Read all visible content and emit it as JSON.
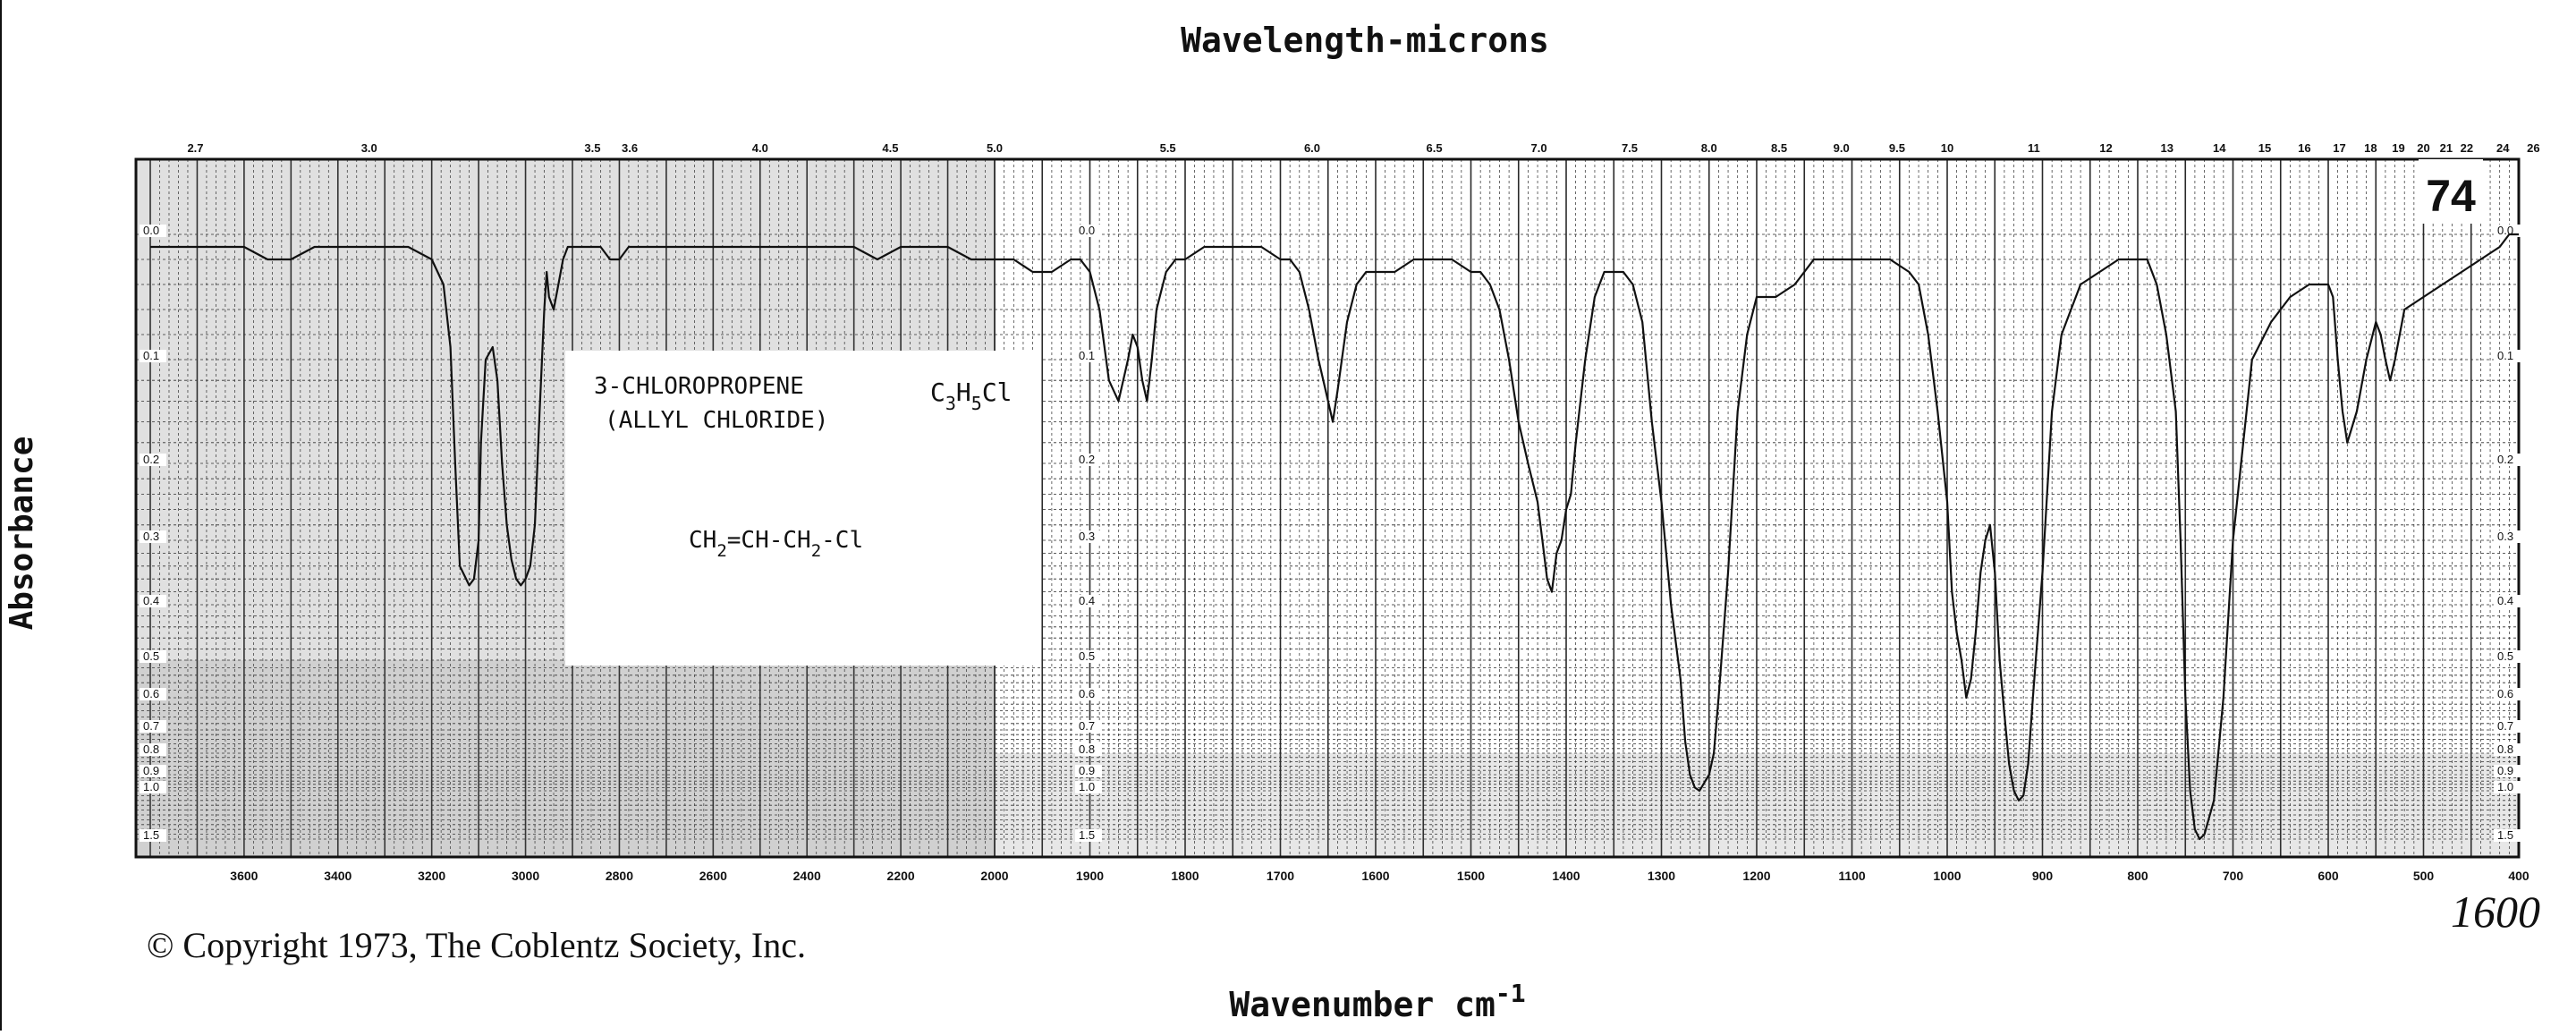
{
  "top_title": "Wavelength-microns",
  "bottom_title": "Wavenumber cm",
  "bottom_title_sup": "-1",
  "left_title": "Absorbance",
  "copyright": "© Copyright 1973, The Coblentz Society, Inc.",
  "corner_number": "74",
  "margin_note": "1600",
  "label_box": {
    "name_line1": "3-CHLOROPROPENE",
    "name_line2": "(ALLYL CHLORIDE)",
    "formula_parts": [
      "C",
      "3",
      "H",
      "5",
      "Cl"
    ],
    "structure_parts": [
      "CH",
      "2",
      "=CH-CH",
      "2",
      "-Cl"
    ]
  },
  "colors": {
    "ink": "#111111",
    "grid": "#333333",
    "paper": "#ffffff"
  },
  "chart_data": {
    "type": "line",
    "title": "",
    "xlabel": "Wavenumber cm-1",
    "x2label": "Wavelength-microns",
    "ylabel": "Absorbance",
    "xlim": [
      3800,
      400
    ],
    "ylim": [
      0,
      1.5
    ],
    "x_scale": "piecewise-linear (4000-2000 and 2000-400 cm-1 at different scales)",
    "y_scale": "absorbance (nonlinear, from 0.0 at top to 1.5 at bottom)",
    "grid": true,
    "bottom_ticks": [
      "3600",
      "3400",
      "3200",
      "3000",
      "2800",
      "2600",
      "2400",
      "2200",
      "2000",
      "1900",
      "1800",
      "1700",
      "1600",
      "1500",
      "1400",
      "1300",
      "1200",
      "1100",
      "1000",
      "900",
      "800",
      "700",
      "600",
      "500",
      "400"
    ],
    "top_ticks": [
      "2.7",
      "3.0",
      "3.5",
      "3.6",
      "4.0",
      "4.5",
      "5.0",
      "5.5",
      "6.0",
      "6.5",
      "7.0",
      "7.5",
      "8.0",
      "8.5",
      "9.0",
      "9.5",
      "10",
      "11",
      "12",
      "13",
      "14",
      "15",
      "16",
      "17",
      "18",
      "19",
      "20",
      "21",
      "22",
      "24",
      "26"
    ],
    "y_ticks": [
      "0.0",
      "0.1",
      "0.2",
      "0.3",
      "0.4",
      "0.5",
      "0.6",
      "0.7",
      "0.8",
      "0.9",
      "1.0",
      "1.5"
    ],
    "series": [
      {
        "x": [
          3800,
          3750,
          3700,
          3650,
          3600,
          3550,
          3500,
          3450,
          3400,
          3350,
          3300,
          3250,
          3200,
          3175,
          3160,
          3150,
          3140,
          3120,
          3110,
          3100,
          3095,
          3085,
          3070,
          3060,
          3050,
          3040,
          3030,
          3020,
          3010,
          3000,
          2990,
          2980,
          2970,
          2960,
          2955,
          2950,
          2940,
          2930,
          2920,
          2910,
          2900,
          2880,
          2860,
          2840,
          2820,
          2800,
          2780,
          2760,
          2740,
          2720,
          2700,
          2650,
          2600,
          2550,
          2500,
          2450,
          2400,
          2350,
          2300,
          2250,
          2200,
          2150,
          2100,
          2050,
          2000,
          1980,
          1960,
          1940,
          1920,
          1910,
          1900,
          1890,
          1880,
          1870,
          1860,
          1855,
          1850,
          1845,
          1840,
          1835,
          1830,
          1820,
          1810,
          1800,
          1780,
          1760,
          1740,
          1720,
          1700,
          1690,
          1680,
          1670,
          1660,
          1650,
          1645,
          1640,
          1630,
          1620,
          1610,
          1600,
          1590,
          1580,
          1560,
          1540,
          1520,
          1500,
          1490,
          1480,
          1470,
          1460,
          1450,
          1440,
          1430,
          1425,
          1420,
          1415,
          1410,
          1405,
          1400,
          1395,
          1390,
          1380,
          1370,
          1360,
          1350,
          1340,
          1330,
          1320,
          1310,
          1300,
          1290,
          1280,
          1275,
          1270,
          1265,
          1260,
          1255,
          1250,
          1245,
          1240,
          1230,
          1220,
          1210,
          1200,
          1180,
          1160,
          1140,
          1120,
          1100,
          1080,
          1060,
          1040,
          1030,
          1020,
          1010,
          1000,
          995,
          990,
          985,
          980,
          975,
          970,
          965,
          960,
          955,
          950,
          945,
          940,
          935,
          930,
          925,
          920,
          915,
          910,
          900,
          890,
          880,
          860,
          840,
          820,
          800,
          790,
          780,
          770,
          760,
          755,
          750,
          745,
          740,
          735,
          730,
          720,
          710,
          700,
          680,
          660,
          640,
          620,
          600,
          595,
          590,
          585,
          580,
          570,
          560,
          550,
          545,
          540,
          535,
          530,
          520,
          500,
          480,
          460,
          440,
          420,
          410,
          400
        ],
        "y": [
          0.01,
          0.01,
          0.01,
          0.01,
          0.01,
          0.02,
          0.02,
          0.01,
          0.01,
          0.01,
          0.01,
          0.01,
          0.02,
          0.04,
          0.09,
          0.2,
          0.34,
          0.37,
          0.36,
          0.3,
          0.18,
          0.1,
          0.09,
          0.12,
          0.2,
          0.28,
          0.33,
          0.36,
          0.37,
          0.36,
          0.34,
          0.28,
          0.15,
          0.06,
          0.03,
          0.05,
          0.06,
          0.04,
          0.02,
          0.01,
          0.01,
          0.01,
          0.01,
          0.01,
          0.02,
          0.02,
          0.01,
          0.01,
          0.01,
          0.01,
          0.01,
          0.01,
          0.01,
          0.01,
          0.01,
          0.01,
          0.01,
          0.01,
          0.01,
          0.02,
          0.01,
          0.01,
          0.01,
          0.02,
          0.02,
          0.02,
          0.03,
          0.03,
          0.02,
          0.02,
          0.03,
          0.06,
          0.12,
          0.14,
          0.1,
          0.08,
          0.09,
          0.12,
          0.14,
          0.1,
          0.06,
          0.03,
          0.02,
          0.02,
          0.01,
          0.01,
          0.01,
          0.01,
          0.02,
          0.02,
          0.03,
          0.06,
          0.1,
          0.14,
          0.16,
          0.13,
          0.07,
          0.04,
          0.03,
          0.03,
          0.03,
          0.03,
          0.02,
          0.02,
          0.02,
          0.03,
          0.03,
          0.04,
          0.06,
          0.1,
          0.16,
          0.2,
          0.25,
          0.3,
          0.36,
          0.38,
          0.32,
          0.3,
          0.26,
          0.24,
          0.18,
          0.1,
          0.05,
          0.03,
          0.03,
          0.03,
          0.04,
          0.07,
          0.16,
          0.25,
          0.4,
          0.55,
          0.75,
          0.9,
          0.98,
          1.0,
          0.95,
          0.9,
          0.8,
          0.6,
          0.35,
          0.15,
          0.08,
          0.05,
          0.05,
          0.04,
          0.02,
          0.02,
          0.02,
          0.02,
          0.02,
          0.03,
          0.04,
          0.08,
          0.15,
          0.25,
          0.38,
          0.45,
          0.5,
          0.6,
          0.55,
          0.45,
          0.35,
          0.3,
          0.28,
          0.35,
          0.5,
          0.65,
          0.85,
          1.0,
          1.1,
          1.05,
          0.85,
          0.6,
          0.35,
          0.15,
          0.08,
          0.04,
          0.03,
          0.02,
          0.02,
          0.02,
          0.04,
          0.08,
          0.15,
          0.3,
          0.6,
          1.0,
          1.4,
          1.5,
          1.45,
          1.1,
          0.6,
          0.3,
          0.1,
          0.07,
          0.05,
          0.04,
          0.04,
          0.05,
          0.1,
          0.15,
          0.18,
          0.15,
          0.1,
          0.07,
          0.08,
          0.1,
          0.12,
          0.1,
          0.06,
          0.05,
          0.04,
          0.03,
          0.02,
          0.01,
          0.0,
          0.0
        ]
      }
    ]
  }
}
